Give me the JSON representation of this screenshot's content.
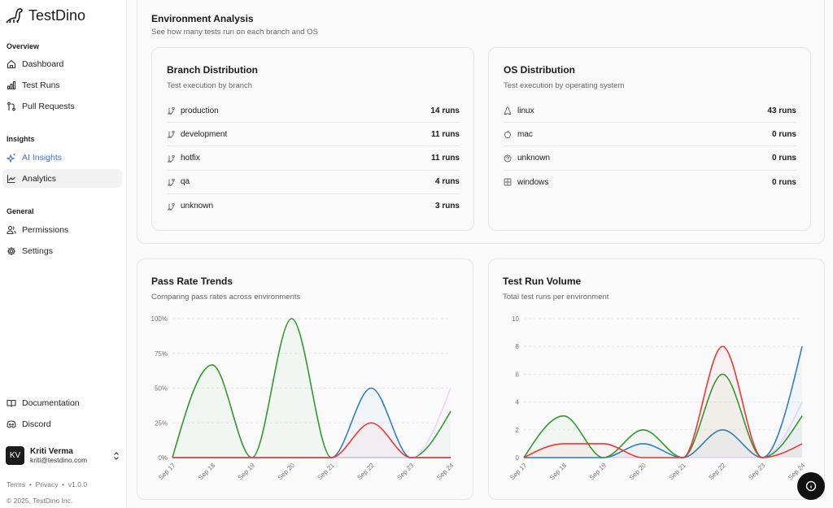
{
  "app": {
    "name": "TestDino"
  },
  "sidebar": {
    "sections": [
      "Overview",
      "Insights",
      "General"
    ],
    "items": [
      {
        "label": "Dashboard",
        "icon": "home-icon"
      },
      {
        "label": "Test Runs",
        "icon": "bar-chart-icon"
      },
      {
        "label": "Pull Requests",
        "icon": "git-pull-request-icon"
      },
      {
        "label": "AI Insights",
        "icon": "sparkles-icon"
      },
      {
        "label": "Analytics",
        "icon": "line-chart-icon"
      },
      {
        "label": "Permissions",
        "icon": "users-icon"
      },
      {
        "label": "Settings",
        "icon": "gear-icon"
      },
      {
        "label": "Documentation",
        "icon": "book-icon"
      },
      {
        "label": "Discord",
        "icon": "discord-icon"
      }
    ],
    "user": {
      "initials": "KV",
      "name": "Kriti Verma",
      "email": "kriti@testdino.com"
    },
    "footer": {
      "terms": "Terms",
      "privacy": "Privacy",
      "version": "v1.0.0",
      "copyright": "© 2025, TestDino Inc."
    }
  },
  "env": {
    "title": "Environment Analysis",
    "subtitle": "See how many tests run on each branch and OS",
    "branch": {
      "title": "Branch Distribution",
      "subtitle": "Test execution by branch",
      "rows": [
        {
          "name": "production",
          "value": "14 runs"
        },
        {
          "name": "development",
          "value": "11 runs"
        },
        {
          "name": "hotfix",
          "value": "11 runs"
        },
        {
          "name": "qa",
          "value": "4 runs"
        },
        {
          "name": "unknown",
          "value": "3 runs"
        }
      ]
    },
    "os": {
      "title": "OS Distribution",
      "subtitle": "Test execution by operating system",
      "rows": [
        {
          "name": "linux",
          "value": "43 runs",
          "icon": "linux-icon"
        },
        {
          "name": "mac",
          "value": "0 runs",
          "icon": "apple-icon"
        },
        {
          "name": "unknown",
          "value": "0 runs",
          "icon": "help-circle-icon"
        },
        {
          "name": "windows",
          "value": "0 runs",
          "icon": "windows-icon"
        }
      ]
    }
  },
  "chart_data": [
    {
      "type": "line",
      "title": "Pass Rate Trends",
      "subtitle": "Comparing pass rates across environments",
      "categories": [
        "Sep 17",
        "Sep 18",
        "Sep 19",
        "Sep 20",
        "Sep 21",
        "Sep 22",
        "Sep 23",
        "Sep 24"
      ],
      "ylim": [
        0,
        100
      ],
      "yticks": [
        0,
        25,
        50,
        75,
        100
      ],
      "ytick_labels": [
        "0%",
        "25%",
        "50%",
        "75%",
        "100%"
      ],
      "grid": true,
      "series": [
        {
          "name": "series-green",
          "color": "#2e9a2e",
          "values": [
            0,
            66.7,
            0,
            100,
            0,
            0,
            0,
            33.3
          ]
        },
        {
          "name": "series-purple",
          "color": "#e9d5ff",
          "values": [
            0,
            0,
            0,
            0,
            0,
            0,
            0,
            50
          ]
        },
        {
          "name": "series-blue",
          "color": "#2f7fc1",
          "values": [
            0,
            0,
            0,
            0,
            0,
            50,
            0,
            0
          ]
        },
        {
          "name": "series-red",
          "color": "#ef3535",
          "values": [
            0,
            0,
            0,
            0,
            0,
            25,
            0,
            0
          ]
        }
      ]
    },
    {
      "type": "line",
      "title": "Test Run Volume",
      "subtitle": "Total test runs per environment",
      "categories": [
        "Sep 17",
        "Sep 18",
        "Sep 19",
        "Sep 20",
        "Sep 21",
        "Sep 22",
        "Sep 23",
        "Sep 24"
      ],
      "ylim": [
        0,
        10
      ],
      "yticks": [
        0,
        2,
        4,
        6,
        8,
        10
      ],
      "ytick_labels": [
        "0",
        "2",
        "4",
        "6",
        "8",
        "10"
      ],
      "grid": true,
      "series": [
        {
          "name": "series-purple",
          "color": "#e9d5ff",
          "values": [
            0,
            0,
            0,
            0,
            0,
            0,
            0,
            4
          ]
        },
        {
          "name": "series-blue",
          "color": "#2f7fc1",
          "values": [
            0,
            0,
            0,
            1,
            0,
            2,
            0,
            8
          ]
        },
        {
          "name": "series-green",
          "color": "#2e9a2e",
          "values": [
            0,
            3,
            0,
            2,
            0,
            6,
            0,
            3
          ]
        },
        {
          "name": "series-red",
          "color": "#ef3535",
          "values": [
            0,
            1,
            1,
            0,
            0,
            8,
            0,
            1
          ]
        }
      ]
    }
  ]
}
